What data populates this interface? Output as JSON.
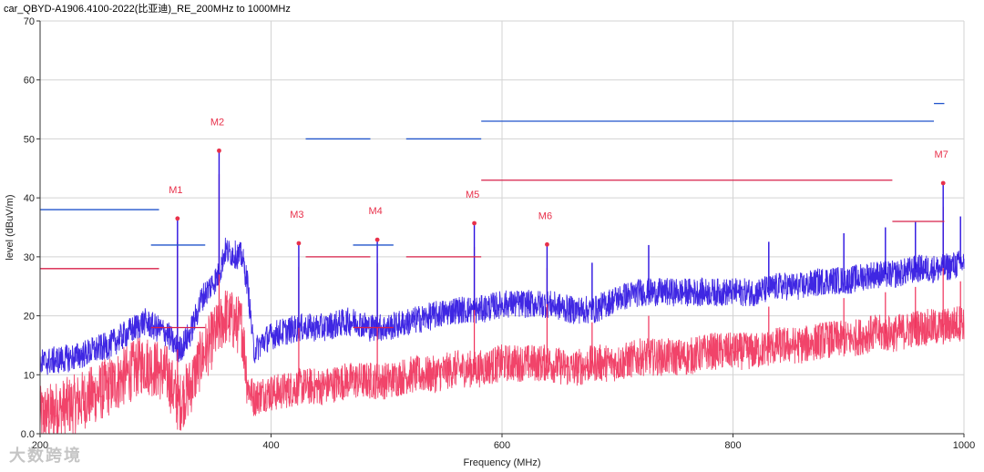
{
  "chart_data": {
    "type": "line",
    "title": "car_QBYD-A1906.4100-2022(比亚迪)_RE_200MHz to 1000MHz",
    "xlabel": "Frequency (MHz)",
    "ylabel": "level (dBuV/m)",
    "xlim": [
      200,
      1000
    ],
    "ylim": [
      0,
      70
    ],
    "x_ticks": [
      200,
      400,
      600,
      800,
      1000
    ],
    "y_ticks": [
      0,
      10,
      20,
      30,
      40,
      50,
      60,
      70
    ],
    "x_tick_labels": [
      "200",
      "400",
      "600",
      "800",
      "1000"
    ],
    "y_tick_labels": [
      "0.0",
      "10",
      "20",
      "30",
      "40",
      "50",
      "60",
      "70"
    ],
    "grid": true,
    "colors": {
      "series_peak": "#2a10e0",
      "series_avg": "#f0305a",
      "limit_peak": "#2255cc",
      "limit_avg": "#d8204a",
      "marker": "#e8304a"
    },
    "series": [
      {
        "x": [
          200,
          230,
          260,
          290,
          310,
          320,
          330,
          340,
          355,
          360,
          375,
          380,
          385,
          395,
          405,
          425,
          445,
          465,
          475,
          485,
          500,
          520,
          540,
          560,
          580,
          600,
          620,
          640,
          660,
          680,
          700,
          720,
          740,
          760,
          780,
          800,
          820,
          840,
          860,
          880,
          900,
          920,
          940,
          960,
          980,
          1000
        ],
        "values": [
          12,
          13,
          15,
          19,
          17,
          14,
          17,
          23,
          27,
          31,
          30,
          25,
          14,
          16,
          17,
          18,
          18,
          19,
          19,
          18,
          18,
          19,
          20,
          21,
          21,
          22,
          22,
          22,
          21,
          21,
          23,
          24,
          24,
          24,
          24,
          24,
          24,
          25,
          25,
          26,
          26,
          27,
          27,
          28,
          28,
          29
        ]
      },
      {
        "x": [
          200,
          230,
          260,
          290,
          310,
          320,
          330,
          340,
          355,
          360,
          375,
          380,
          385,
          395,
          405,
          425,
          445,
          465,
          475,
          485,
          500,
          520,
          540,
          560,
          580,
          600,
          620,
          640,
          660,
          680,
          700,
          720,
          740,
          760,
          780,
          800,
          820,
          840,
          860,
          880,
          900,
          920,
          940,
          960,
          980,
          1000
        ],
        "values": [
          3,
          5,
          8,
          12,
          10,
          5,
          8,
          13,
          18,
          20,
          18,
          8,
          6,
          7,
          7,
          8,
          8,
          9,
          9,
          9,
          9,
          10,
          10,
          11,
          11,
          12,
          12,
          12,
          11,
          12,
          12,
          13,
          13,
          13,
          14,
          14,
          14,
          15,
          15,
          16,
          16,
          17,
          17,
          18,
          18,
          19
        ]
      }
    ],
    "limits": [
      {
        "segments": [
          [
            200,
            303,
            38
          ],
          [
            296,
            343,
            32
          ],
          [
            430,
            486,
            50
          ],
          [
            471,
            506,
            32
          ],
          [
            517,
            582,
            50
          ],
          [
            582,
            974,
            53
          ],
          [
            974,
            983,
            56
          ]
        ]
      },
      {
        "segments": [
          [
            200,
            303,
            28
          ],
          [
            296,
            343,
            18
          ],
          [
            430,
            486,
            30
          ],
          [
            471,
            506,
            18
          ],
          [
            517,
            582,
            30
          ],
          [
            582,
            938,
            43
          ],
          [
            938,
            983,
            36
          ]
        ]
      }
    ],
    "markers": [
      {
        "label": "M1",
        "x": 319,
        "y": 36.5
      },
      {
        "label": "M2",
        "x": 355,
        "y": 48.0
      },
      {
        "label": "M3",
        "x": 424,
        "y": 32.3
      },
      {
        "label": "M4",
        "x": 492,
        "y": 32.9
      },
      {
        "label": "M5",
        "x": 576,
        "y": 35.7
      },
      {
        "label": "M6",
        "x": 639,
        "y": 32.1
      },
      {
        "label": "M7",
        "x": 982,
        "y": 42.5
      }
    ],
    "spikes": [
      319,
      355,
      424,
      492,
      576,
      639,
      678,
      727,
      831,
      896,
      932,
      958,
      982,
      997
    ]
  },
  "watermark": "大数跨境"
}
